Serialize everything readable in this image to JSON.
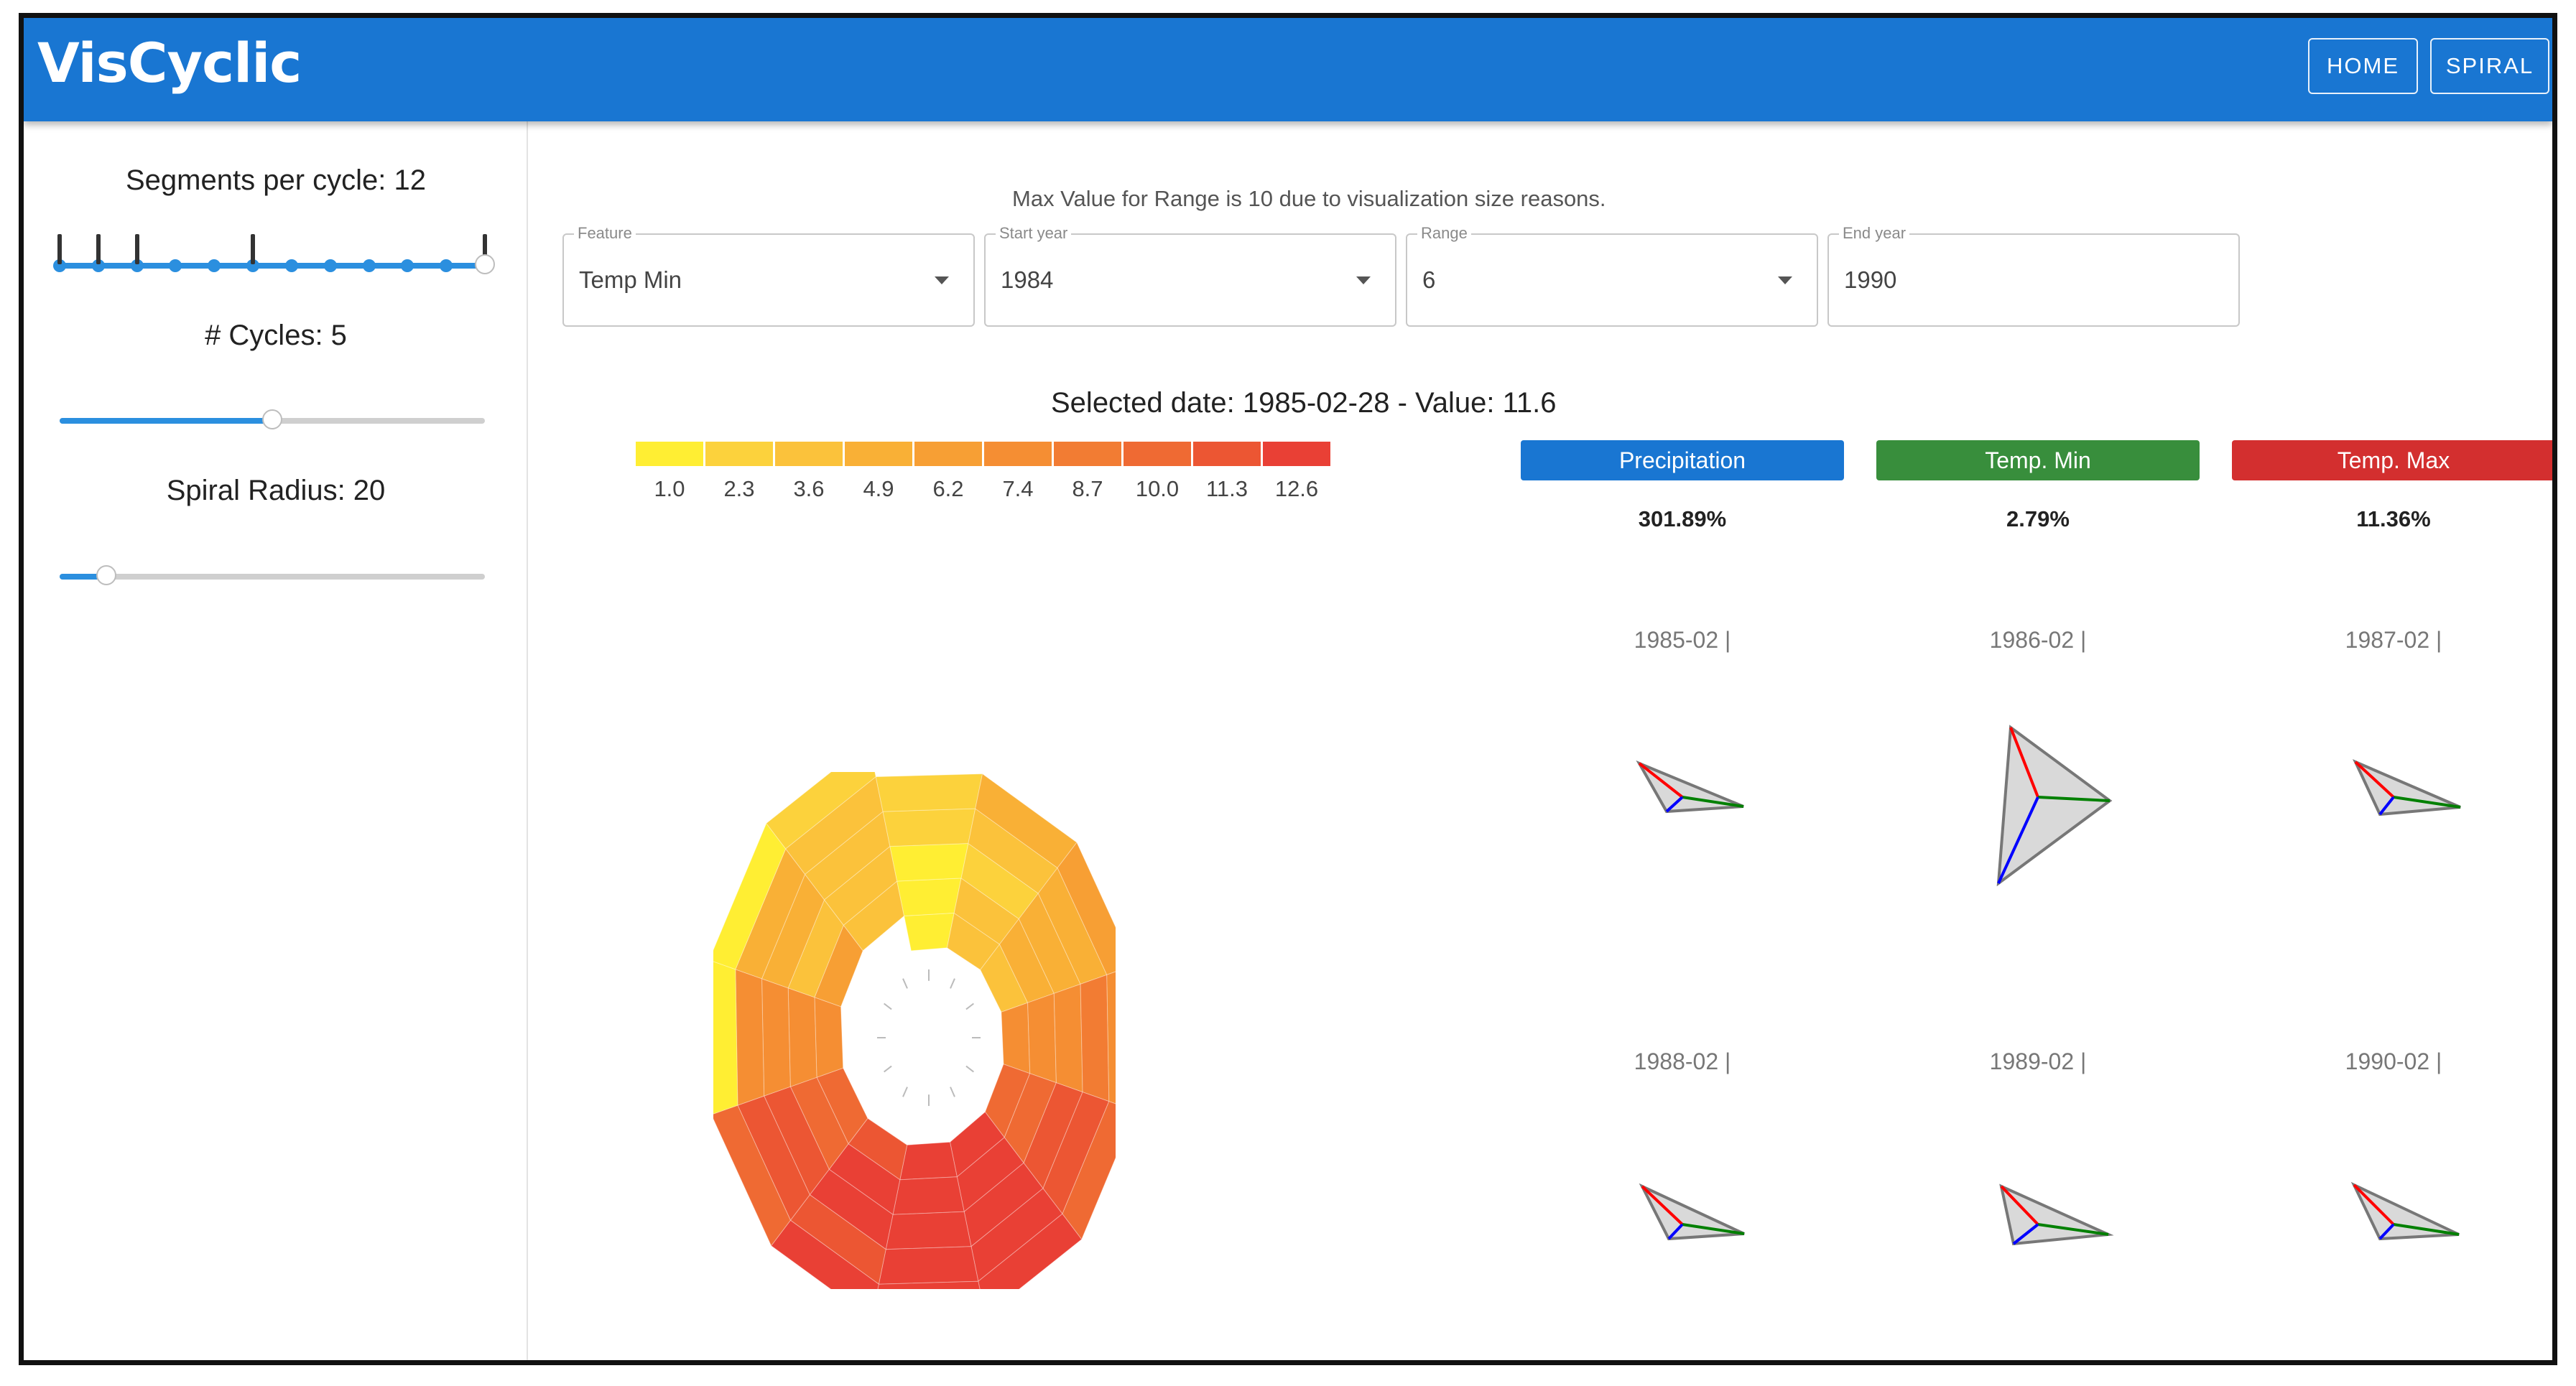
{
  "app": {
    "title": "VisCyclic"
  },
  "nav": {
    "home_label": "HOME",
    "spiral_label": "SPIRAL"
  },
  "controls": {
    "segments": {
      "label": "Segments per cycle: 12",
      "value": 12,
      "marks": [
        1,
        2,
        3,
        6,
        12
      ]
    },
    "cycles": {
      "label": "# Cycles: 5",
      "value": 5
    },
    "radius": {
      "label": "Spiral Radius: 20",
      "value": 20
    }
  },
  "range_note": "Max Value for Range is 10 due to visualization size reasons.",
  "fields": {
    "feature": {
      "label": "Feature",
      "value": "Temp Min"
    },
    "start_year": {
      "label": "Start year",
      "value": "1984"
    },
    "range": {
      "label": "Range",
      "value": "6"
    },
    "end_year": {
      "label": "End year",
      "value": "1990"
    }
  },
  "selected_info": "Selected date: 1985-02-28 - Value: 11.6",
  "legend": {
    "ticks": [
      "1.0",
      "2.3",
      "3.6",
      "4.9",
      "6.2",
      "7.4",
      "8.7",
      "10.0",
      "11.3",
      "12.6"
    ],
    "colors": [
      "#ffee33",
      "#fcd23c",
      "#fbc23b",
      "#f9b036",
      "#f79f34",
      "#f58e33",
      "#f27c33",
      "#ef6a33",
      "#ec5633",
      "#e94035"
    ]
  },
  "metrics": [
    {
      "label": "Precipitation",
      "color": "#1976d2",
      "value": "301.89%"
    },
    {
      "label": "Temp. Min",
      "color": "#388e3c",
      "value": "2.79%"
    },
    {
      "label": "Temp. Max",
      "color": "#d32f2f",
      "value": "11.36%"
    }
  ],
  "glyph_labels": [
    "1985-02 |",
    "1986-02 |",
    "1987-02 |",
    "1988-02 |",
    "1989-02 |",
    "1990-02 |"
  ],
  "axis_colors": {
    "precipitation": "#0000ff",
    "temp_min": "#008000",
    "temp_max": "#ff0000"
  }
}
